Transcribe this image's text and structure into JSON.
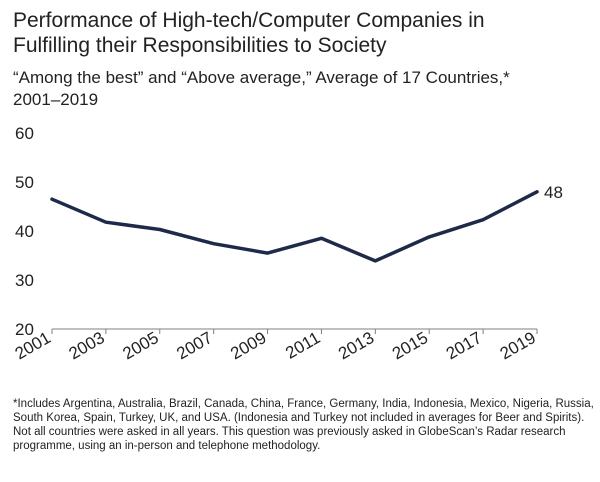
{
  "title_line1": "Performance of High-tech/Computer Companies in",
  "title_line2": "Fulfilling their Responsibilities to Society",
  "subtitle_line1": "“Among the best” and “Above average,” Average of 17 Countries,*",
  "subtitle_line2": "2001–2019",
  "notes": {
    "note1": "*Includes Argentina, Australia, Brazil, Canada, China, France, Germany, India, Indonesia, Mexico, Nigeria, Russia, South Korea, Spain, Turkey, UK, and USA. (Indonesia and Turkey not included in averages for Beer and Spirits).",
    "note2": "Not all countries were asked in all years. This question was previously asked in GlobeScan’s Radar research programme, using an in-person and telephone methodology."
  },
  "chart_data": {
    "type": "line",
    "x": [
      "2001",
      "2003",
      "2005",
      "2007",
      "2009",
      "2011",
      "2013",
      "2015",
      "2017",
      "2019"
    ],
    "series": [
      {
        "values": [
          46.5,
          41.8,
          40.3,
          37.4,
          35.5,
          38.5,
          33.9,
          38.8,
          42.3,
          48
        ]
      }
    ],
    "end_label": "48",
    "ylim": [
      20,
      60
    ],
    "yticks": [
      20,
      30,
      40,
      50,
      60
    ],
    "color": "#1f2a4a",
    "grid": false
  }
}
